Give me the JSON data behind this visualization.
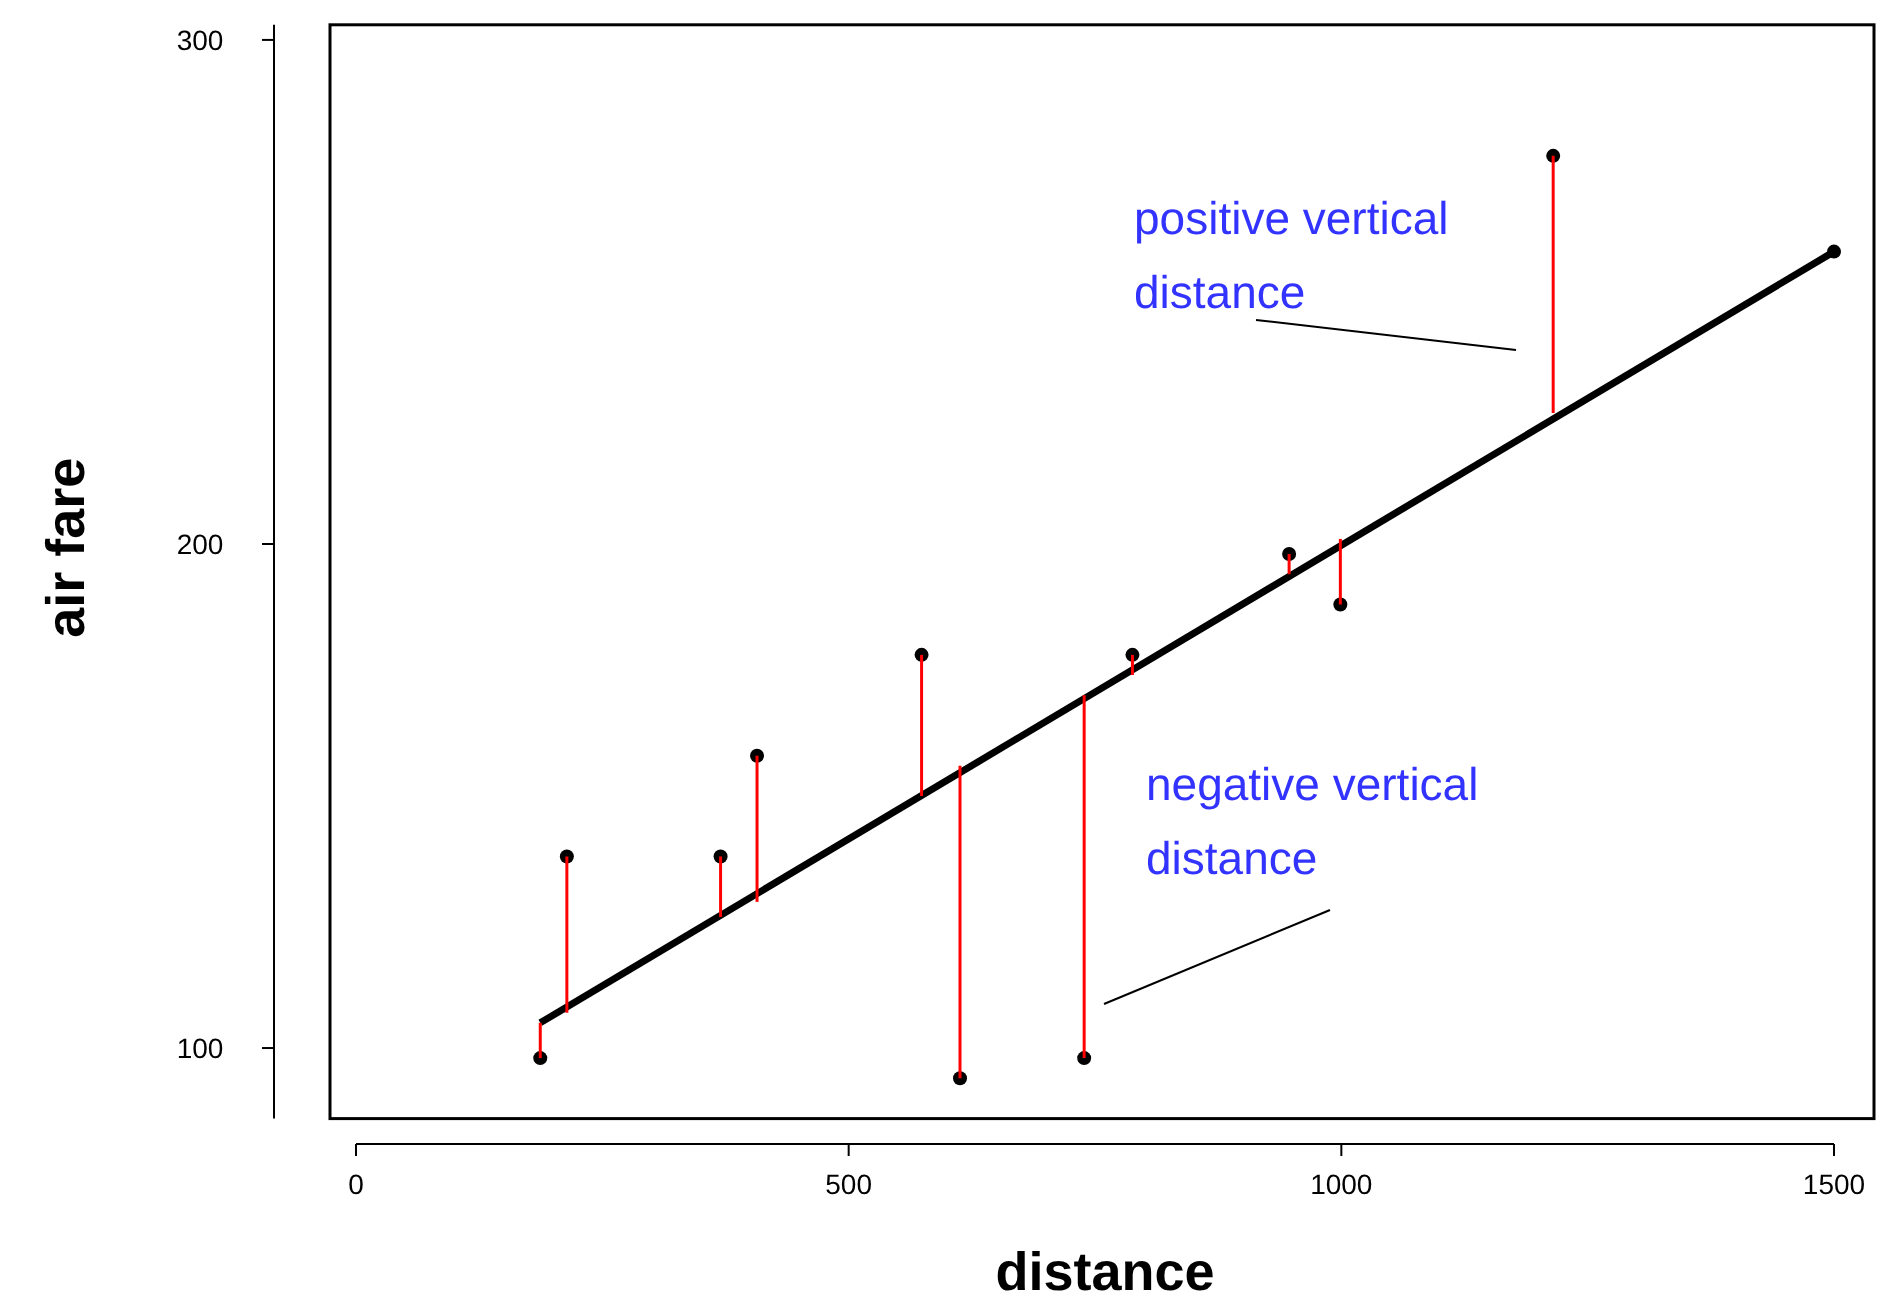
{
  "chart_data": {
    "type": "scatter",
    "xlabel": "distance",
    "ylabel": "air fare",
    "xlim": [
      0,
      1500
    ],
    "ylim": [
      86,
      303
    ],
    "xticks": [
      0,
      500,
      1000,
      1500
    ],
    "yticks": [
      100,
      200,
      300
    ],
    "series": [
      {
        "color": "#000000",
        "marker": "circle",
        "x": [
          187,
          214,
          370,
          407,
          574,
          613,
          739,
          788,
          947,
          999,
          1215,
          1500
        ],
        "values": [
          98,
          138,
          138,
          158,
          178,
          94,
          98,
          178,
          198,
          188,
          277,
          258
        ],
        "errors": [
          [
            98,
            105
          ],
          [
            107,
            138
          ],
          [
            126,
            138
          ],
          [
            129,
            158
          ],
          [
            150,
            178
          ],
          [
            94,
            156
          ],
          [
            98,
            170
          ],
          [
            174,
            178
          ],
          [
            194,
            198
          ],
          [
            188,
            201
          ],
          [
            226,
            277
          ],
          null
        ]
      },
      {
        "type": "line",
        "color": "#000000",
        "x": [
          187,
          1500
        ],
        "values": [
          105,
          258
        ]
      }
    ],
    "annotations": [
      "positive vertical distance",
      "negative vertical distance"
    ]
  }
}
